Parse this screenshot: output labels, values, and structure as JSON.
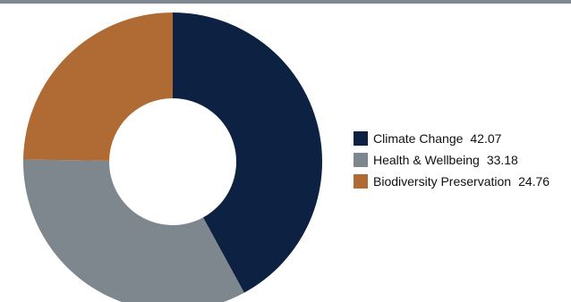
{
  "chart_data": {
    "type": "pie",
    "variant": "donut",
    "title": "",
    "categories": [
      "Climate Change",
      "Health & Wellbeing",
      "Biodiversity Preservation"
    ],
    "values": [
      42.07,
      33.18,
      24.76
    ],
    "value_labels": [
      "42.07",
      "33.18",
      "24.76"
    ],
    "colors": [
      "#0d2242",
      "#7e878e",
      "#b06a33"
    ],
    "legend_position": "right"
  }
}
